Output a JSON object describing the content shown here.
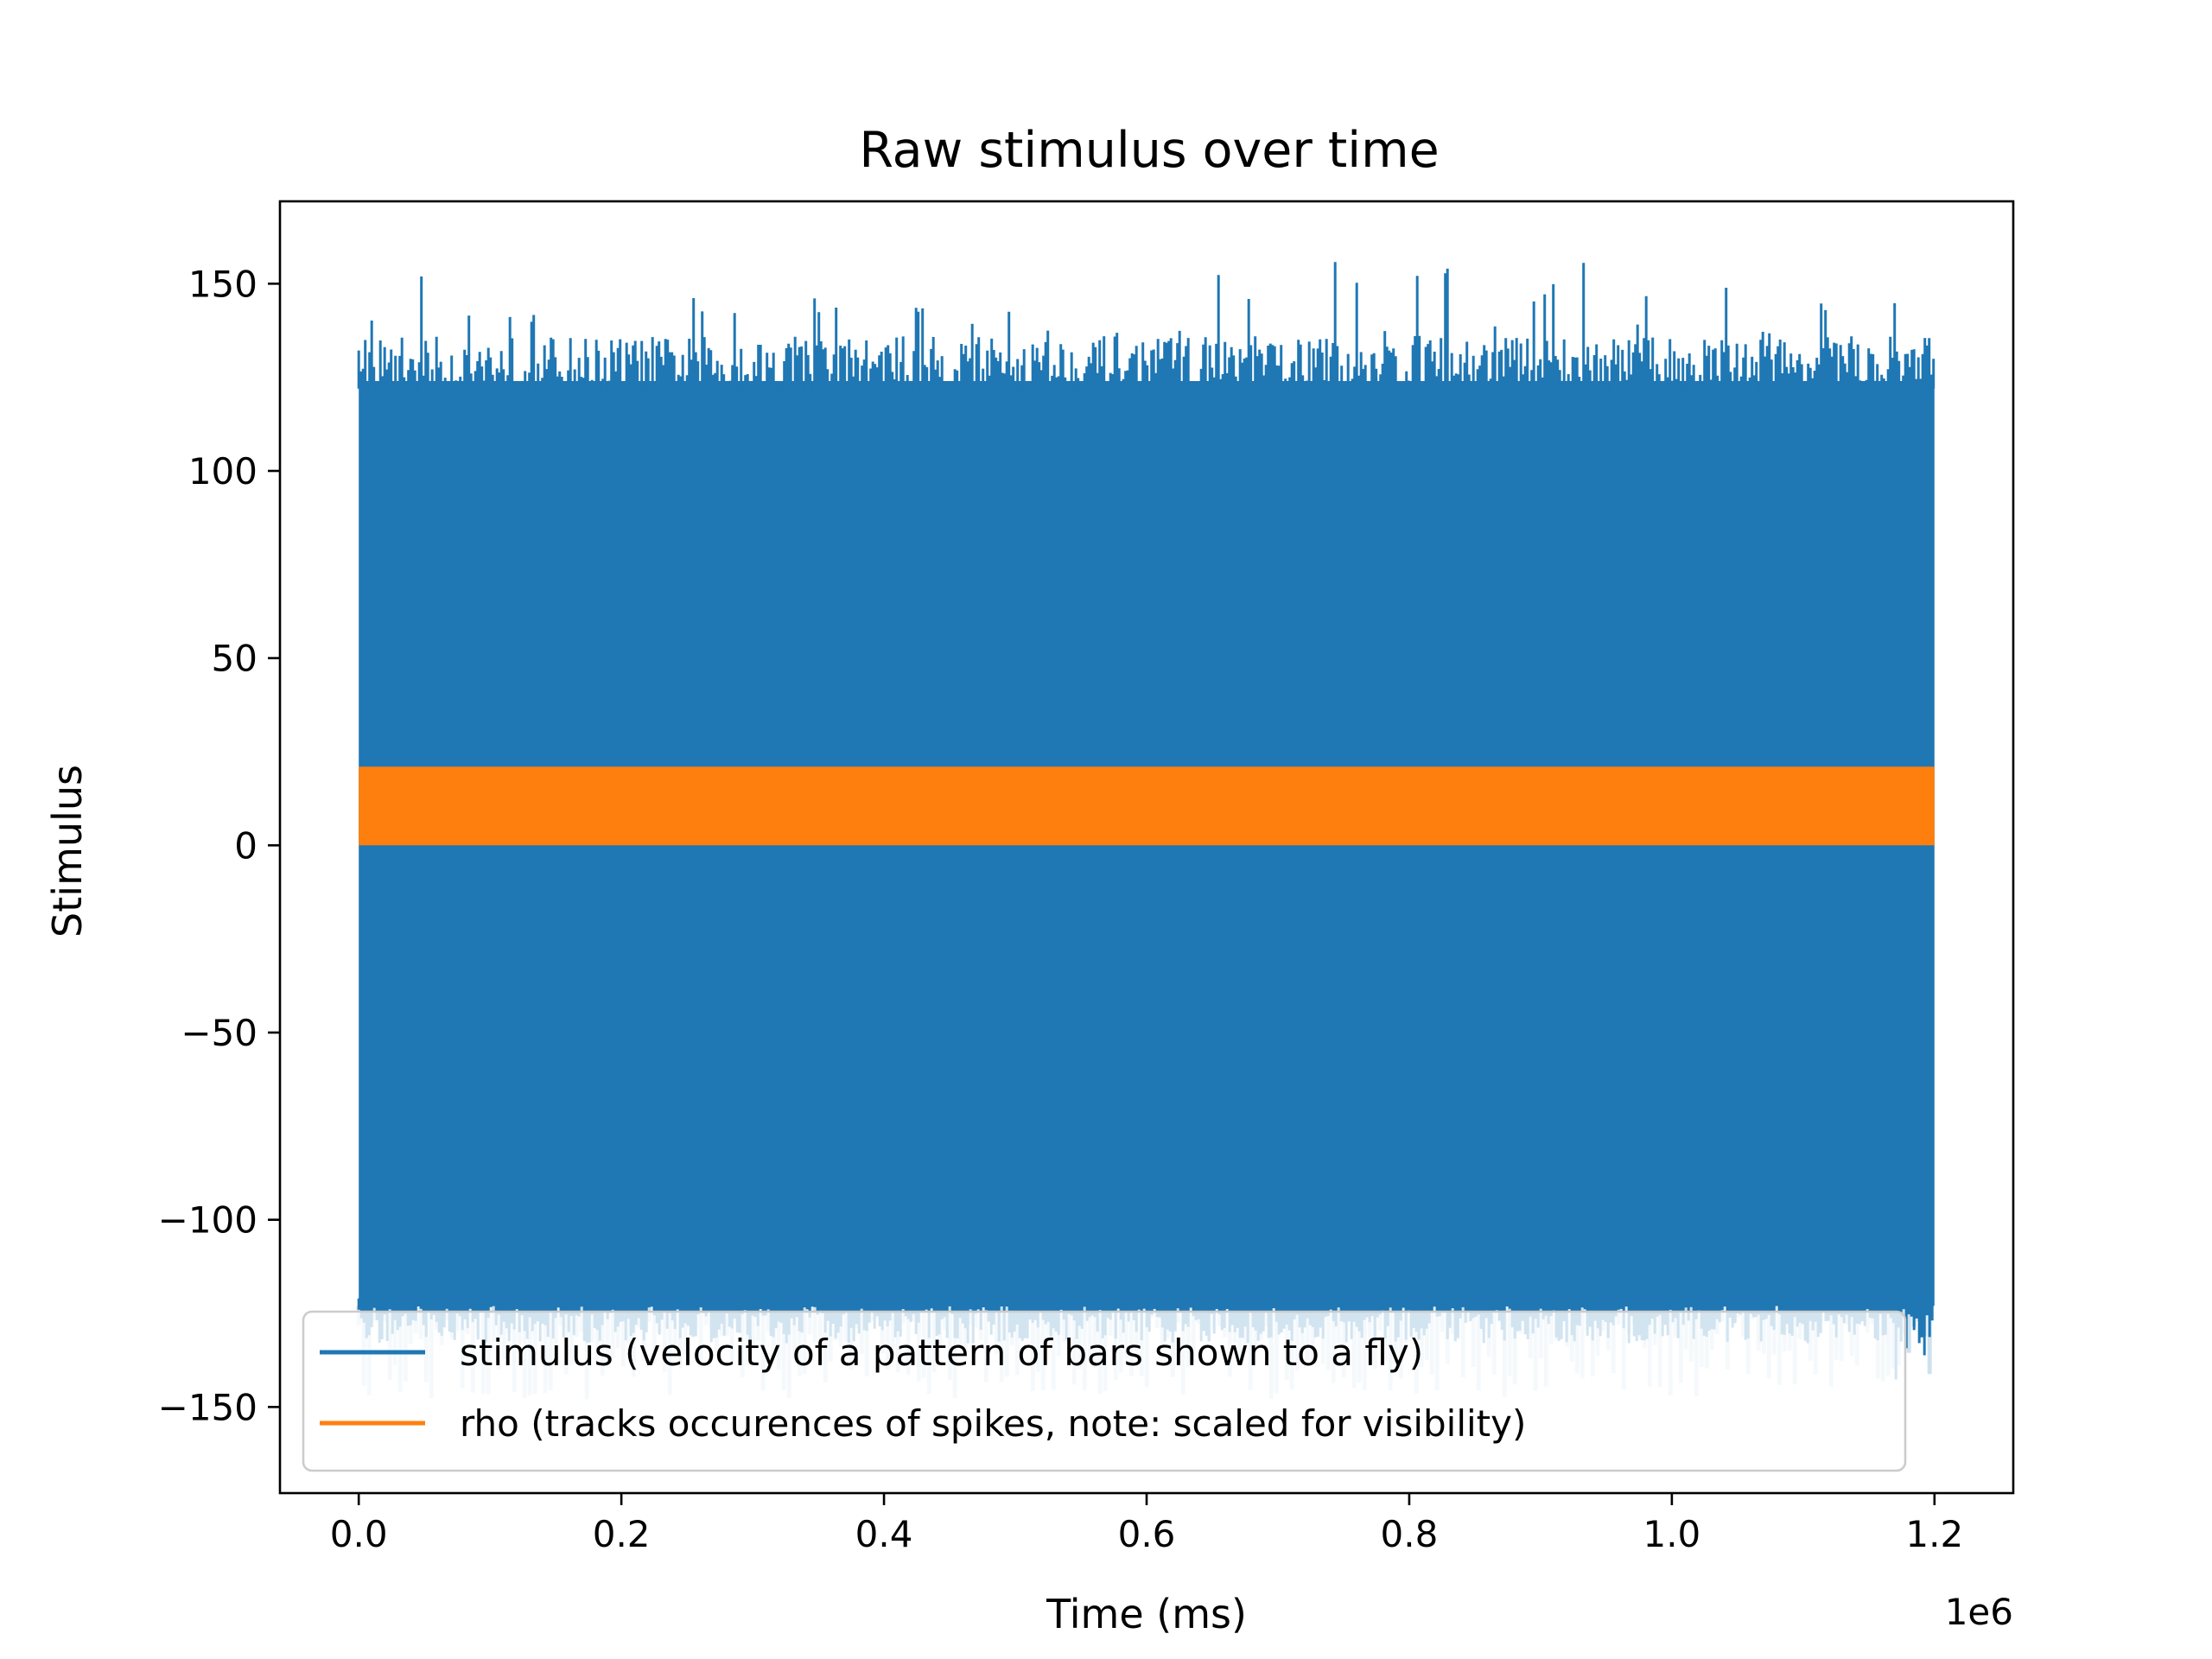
{
  "chart_data": {
    "type": "line",
    "title": "Raw stimulus over time",
    "xlabel": "Time (ms)",
    "ylabel": "Stimulus",
    "x_offset_label": "1e6",
    "xlim": [
      -0.06,
      1.26
    ],
    "ylim": [
      -173,
      172
    ],
    "x_tick_values": [
      0.0,
      0.2,
      0.4,
      0.6,
      0.8,
      1.0,
      1.2
    ],
    "x_tick_labels": [
      "0.0",
      "0.2",
      "0.4",
      "0.6",
      "0.8",
      "1.0",
      "1.2"
    ],
    "y_tick_values": [
      -150,
      -100,
      -50,
      0,
      50,
      100,
      150
    ],
    "y_tick_labels": [
      "−150",
      "−100",
      "−50",
      "0",
      "50",
      "100",
      "150"
    ],
    "grid": false,
    "legend_position": "lower-center",
    "series": [
      {
        "name": "stimulus (velocity of a pattern of bars shown to a fly)",
        "color": "#1f77b4",
        "x_range": [
          0.0,
          1.2
        ],
        "y_range": [
          -143,
          156
        ],
        "dense_band": [
          -123,
          124
        ]
      },
      {
        "name": "rho (tracks occurences of spikes, note: scaled for visibility)",
        "color": "#ff7f0e",
        "x_range": [
          0.0,
          1.2
        ],
        "y_range": [
          0,
          21
        ]
      }
    ]
  }
}
